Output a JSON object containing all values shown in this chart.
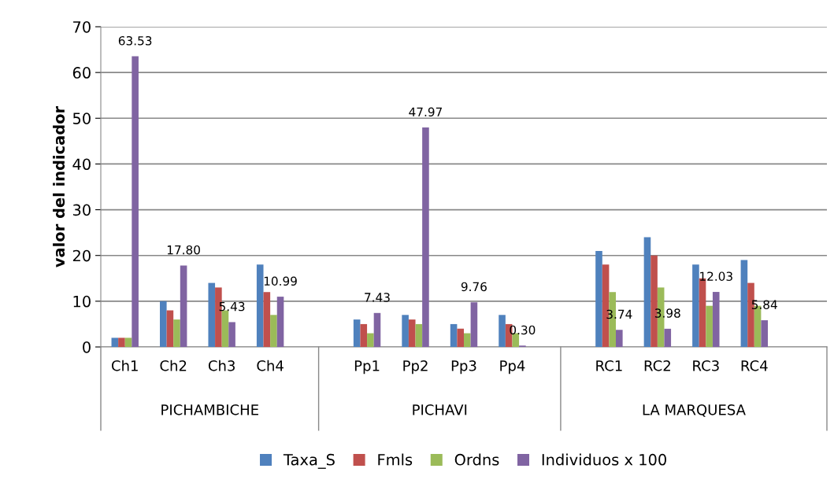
{
  "chart_data": {
    "type": "bar",
    "ylabel": "valor del indicador",
    "categories": [
      "Ch1",
      "Ch2",
      "Ch3",
      "Ch4",
      null,
      "Pp1",
      "Pp2",
      "Pp3",
      "Pp4",
      null,
      "RC1",
      "RC2",
      "RC3",
      "RC4"
    ],
    "series": [
      {
        "name": "Taxa_S",
        "color": "#4f81bd",
        "values": [
          2,
          10,
          14,
          18,
          null,
          6,
          7,
          5,
          7,
          null,
          21,
          24,
          18,
          19
        ]
      },
      {
        "name": "Fmls",
        "color": "#c0504d",
        "values": [
          2,
          8,
          13,
          12,
          null,
          5,
          6,
          4,
          5,
          null,
          18,
          20,
          15,
          14
        ]
      },
      {
        "name": "Ordns",
        "color": "#9bbb59",
        "values": [
          2,
          6,
          8,
          7,
          null,
          3,
          5,
          3,
          3,
          null,
          12,
          13,
          9,
          9
        ]
      },
      {
        "name": "Individuos x 100",
        "color": "#8064a2",
        "values": [
          63.53,
          17.8,
          5.43,
          10.99,
          null,
          7.43,
          47.97,
          9.76,
          0.3,
          null,
          3.74,
          3.98,
          12.03,
          5.84
        ],
        "value_labels": [
          "63.53",
          "17.80",
          "5.43",
          "10.99",
          null,
          "7.43",
          "47.97",
          "9.76",
          "0.30",
          null,
          "3.74",
          "3.98",
          "12.03",
          "5.84"
        ]
      }
    ],
    "ylim": [
      0,
      70
    ],
    "yticks": [
      0,
      10,
      20,
      30,
      40,
      50,
      60,
      70
    ],
    "grid": "y",
    "legend": "bottom",
    "annotations": [
      "PICHAMBICHE",
      "PICHAVI",
      "LA MARQUESA"
    ]
  }
}
